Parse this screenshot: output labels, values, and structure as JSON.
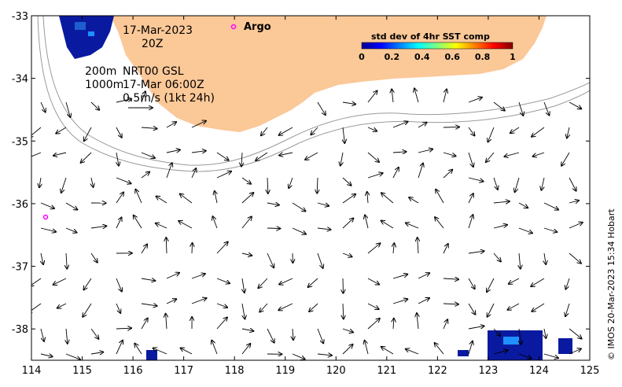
{
  "map": {
    "date_label": "17-Mar-2023",
    "time_label": "20Z",
    "depth_200": "200m",
    "depth_1000": "1000m",
    "product_label": "NRT00 GSL",
    "velocity_time": "17-Mar 06:00Z",
    "scale_label": "0.5m/s (1kt 24h)",
    "argo_label": "Argo",
    "credit": "© IMOS 20-Mar-2023 15:34 Hobart",
    "colors": {
      "land": "#fbc898",
      "argo": "#ff00ff",
      "isobath": "#9a9a9a",
      "sst_low": "#00008b",
      "sst_mid": "#1e90ff"
    }
  },
  "axes": {
    "x_ticks": [
      "114",
      "115",
      "116",
      "117",
      "118",
      "119",
      "120",
      "121",
      "122",
      "123",
      "124",
      "125"
    ],
    "y_ticks": [
      "-33",
      "-34",
      "-35",
      "-36",
      "-37",
      "-38"
    ],
    "x_range": [
      114,
      125
    ],
    "y_range": [
      -38.5,
      -33
    ]
  },
  "colorbar": {
    "title": "std dev of 4hr SST comp",
    "ticks": [
      "0",
      "0.2",
      "0.4",
      "0.6",
      "0.8",
      "1"
    ],
    "range": [
      0,
      1
    ]
  },
  "argo_floats": [
    {
      "lon": 118.0,
      "lat": -33.17
    },
    {
      "lon": 114.27,
      "lat": -36.2
    }
  ]
}
